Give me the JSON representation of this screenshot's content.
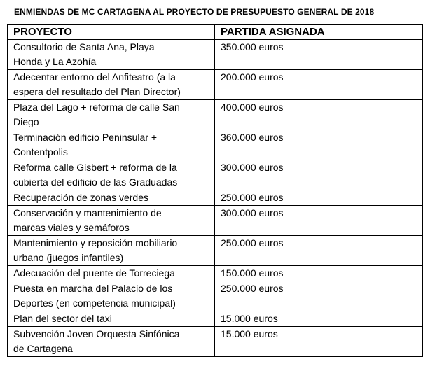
{
  "page": {
    "title": "ENMIENDAS DE MC CARTAGENA AL PROYECTO DE PRESUPUESTO GENERAL DE 2018"
  },
  "table": {
    "headers": [
      "PROYECTO",
      "PARTIDA ASIGNADA"
    ],
    "rows": [
      {
        "proyecto": "Consultorio de Santa Ana, Playa\nHonda y La Azohía",
        "partida": "350.000 euros"
      },
      {
        "proyecto": "Adecentar entorno del Anfiteatro (a la\nespera del resultado del Plan Director)",
        "partida": "200.000 euros"
      },
      {
        "proyecto": "Plaza del Lago + reforma de calle San\nDiego",
        "partida": "400.000 euros"
      },
      {
        "proyecto": "Terminación edificio Peninsular +\nContentpolis",
        "partida": "360.000 euros"
      },
      {
        "proyecto": "Reforma calle Gisbert + reforma de la\ncubierta del edificio de las Graduadas",
        "partida": "300.000 euros"
      },
      {
        "proyecto": "Recuperación de zonas verdes",
        "partida": "250.000 euros"
      },
      {
        "proyecto": "Conservación y mantenimiento de\nmarcas viales y semáforos",
        "partida": "300.000 euros"
      },
      {
        "proyecto": "Mantenimiento y reposición mobiliario\nurbano (juegos infantiles)",
        "partida": "250.000 euros"
      },
      {
        "proyecto": "Adecuación del puente de Torreciega",
        "partida": "150.000 euros"
      },
      {
        "proyecto": "Puesta en marcha del Palacio de los\nDeportes (en competencia municipal)",
        "partida": "250.000 euros"
      },
      {
        "proyecto": "Plan del sector del taxi",
        "partida": "15.000 euros"
      },
      {
        "proyecto": "Subvención Joven Orquesta Sinfónica\nde Cartagena",
        "partida": "15.000 euros"
      }
    ]
  },
  "colors": {
    "text": "#000000",
    "border": "#000000",
    "background": "#ffffff"
  }
}
